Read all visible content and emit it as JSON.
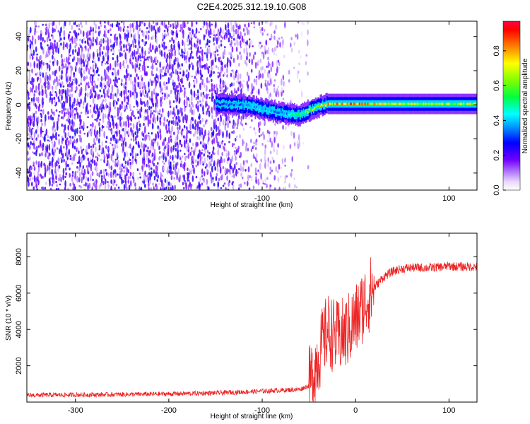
{
  "title": "C2E4.2025.312.19.10.G08",
  "chart_data": [
    {
      "type": "heatmap",
      "xlabel": "Height of straight line (km)",
      "ylabel": "Frequency (Hz)",
      "xlim": [
        -352,
        130
      ],
      "ylim": [
        -50,
        49
      ],
      "xticks": [
        -300,
        -200,
        -100,
        0,
        100
      ],
      "yticks": [
        -40,
        -20,
        0,
        20,
        40
      ],
      "colorbar": {
        "label": "Normalized spectral amplitude",
        "range": [
          0,
          0.97
        ],
        "ticks": [
          "0.0",
          "0.2",
          "0.4",
          "0.6",
          "0.8"
        ],
        "tick_values": [
          0,
          0.2,
          0.4,
          0.6,
          0.8
        ]
      },
      "signal_track": {
        "description": "main carrier trace",
        "x": [
          -150,
          -120,
          -100,
          -80,
          -60,
          -45,
          -30,
          0,
          50,
          130
        ],
        "frequency": [
          0.5,
          0.0,
          -2.5,
          -5.0,
          -6.0,
          -2.0,
          0.5,
          0.5,
          0.5,
          0.5
        ],
        "amplitude": [
          0.3,
          0.4,
          0.45,
          0.35,
          0.6,
          0.7,
          0.85,
          0.9,
          0.7,
          0.7
        ]
      },
      "noise_region": {
        "x": [
          -352,
          -50
        ],
        "amplitude_typical": 0.15
      }
    },
    {
      "type": "line",
      "xlabel": "Height of straight line (km)",
      "ylabel": "SNR (10 * v/v)",
      "xlim": [
        -352,
        130
      ],
      "ylim": [
        0,
        9300
      ],
      "xticks": [
        -300,
        -200,
        -100,
        0,
        100
      ],
      "yticks": [
        2000,
        4000,
        6000,
        8000
      ],
      "color": "#ee2222",
      "series": [
        {
          "name": "SNR",
          "x": [
            -352,
            -300,
            -250,
            -200,
            -150,
            -100,
            -80,
            -60,
            -50,
            -40,
            -30,
            -20,
            -10,
            0,
            10,
            20,
            30,
            40,
            50,
            60,
            80,
            95,
            100,
            110,
            130
          ],
          "y": [
            380,
            400,
            420,
            450,
            500,
            600,
            650,
            700,
            900,
            2500,
            4000,
            3500,
            3800,
            4500,
            5500,
            6300,
            6900,
            7200,
            7350,
            7400,
            7400,
            7450,
            7500,
            7450,
            7450
          ]
        }
      ]
    }
  ]
}
